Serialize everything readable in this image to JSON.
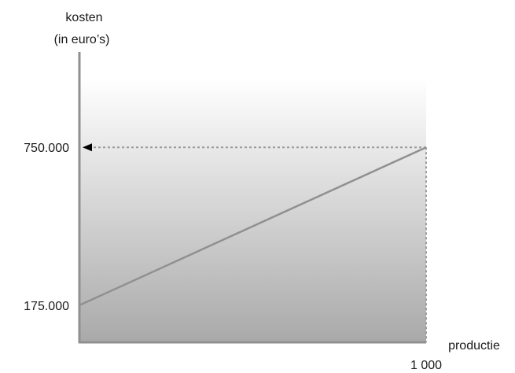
{
  "chart_data": {
    "type": "line",
    "ylabel_line1": "kosten",
    "ylabel_line2": "(in euro’s)",
    "xlabel": "productie",
    "y_ticks": [
      {
        "value": 750000,
        "label": "750.000"
      },
      {
        "value": 175000,
        "label": "175.000"
      }
    ],
    "x_ticks": [
      {
        "value": 1000,
        "label": "1 000"
      }
    ],
    "series": [
      {
        "x": [
          0,
          1000
        ],
        "y": [
          175000,
          750000
        ]
      }
    ],
    "xlim": [
      0,
      1000
    ],
    "ylim": [
      40000,
      1000000
    ],
    "colors": {
      "axis": "#909090",
      "line": "#909090",
      "guide": "#9a9a9a",
      "arrow": "#000000"
    }
  }
}
